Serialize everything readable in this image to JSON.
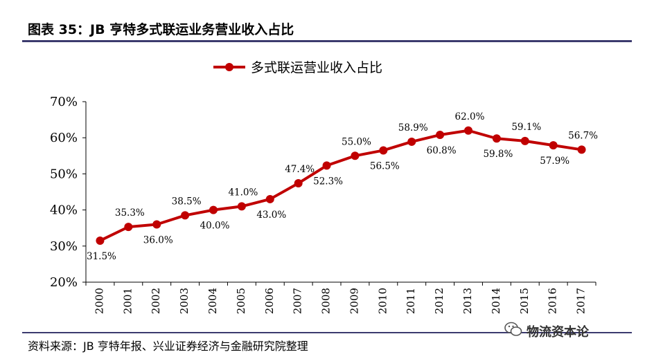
{
  "figure": {
    "title": "图表 35：JB 亨特多式联运业务营业收入占比",
    "source": "资料来源：JB 亨特年报、兴业证券经济与金融研究院整理",
    "watermark": "物流资本论"
  },
  "chart_data": {
    "type": "line",
    "title": "",
    "xlabel": "",
    "ylabel": "",
    "categories": [
      "2000",
      "2001",
      "2002",
      "2003",
      "2004",
      "2005",
      "2006",
      "2007",
      "2008",
      "2009",
      "2010",
      "2011",
      "2012",
      "2013",
      "2014",
      "2015",
      "2016",
      "2017"
    ],
    "series": [
      {
        "name": "多式联运营业收入占比",
        "values": [
          31.5,
          35.3,
          36.0,
          38.5,
          40.0,
          41.0,
          43.0,
          47.4,
          52.3,
          55.0,
          56.5,
          58.9,
          60.8,
          62.0,
          59.8,
          59.1,
          57.9,
          56.7
        ],
        "labels": [
          "31.5%",
          "35.3%",
          "36.0%",
          "38.5%",
          "40.0%",
          "41.0%",
          "43.0%",
          "47.4%",
          "52.3%",
          "55.0%",
          "56.5%",
          "58.9%",
          "60.8%",
          "62.0%",
          "59.8%",
          "59.1%",
          "57.9%",
          "56.7%"
        ],
        "label_side": [
          "below",
          "above",
          "below",
          "above",
          "below",
          "above",
          "below",
          "above",
          "below",
          "above",
          "below",
          "above",
          "below",
          "above",
          "below",
          "above",
          "below",
          "above"
        ],
        "color": "#c00000"
      }
    ],
    "yticks": [
      "20%",
      "30%",
      "40%",
      "50%",
      "60%",
      "70%"
    ],
    "ylim": [
      20,
      70
    ],
    "ytick_values": [
      20,
      30,
      40,
      50,
      60,
      70
    ],
    "grid": false,
    "legend": "top-center",
    "x_tick_rotation": "vertical"
  }
}
